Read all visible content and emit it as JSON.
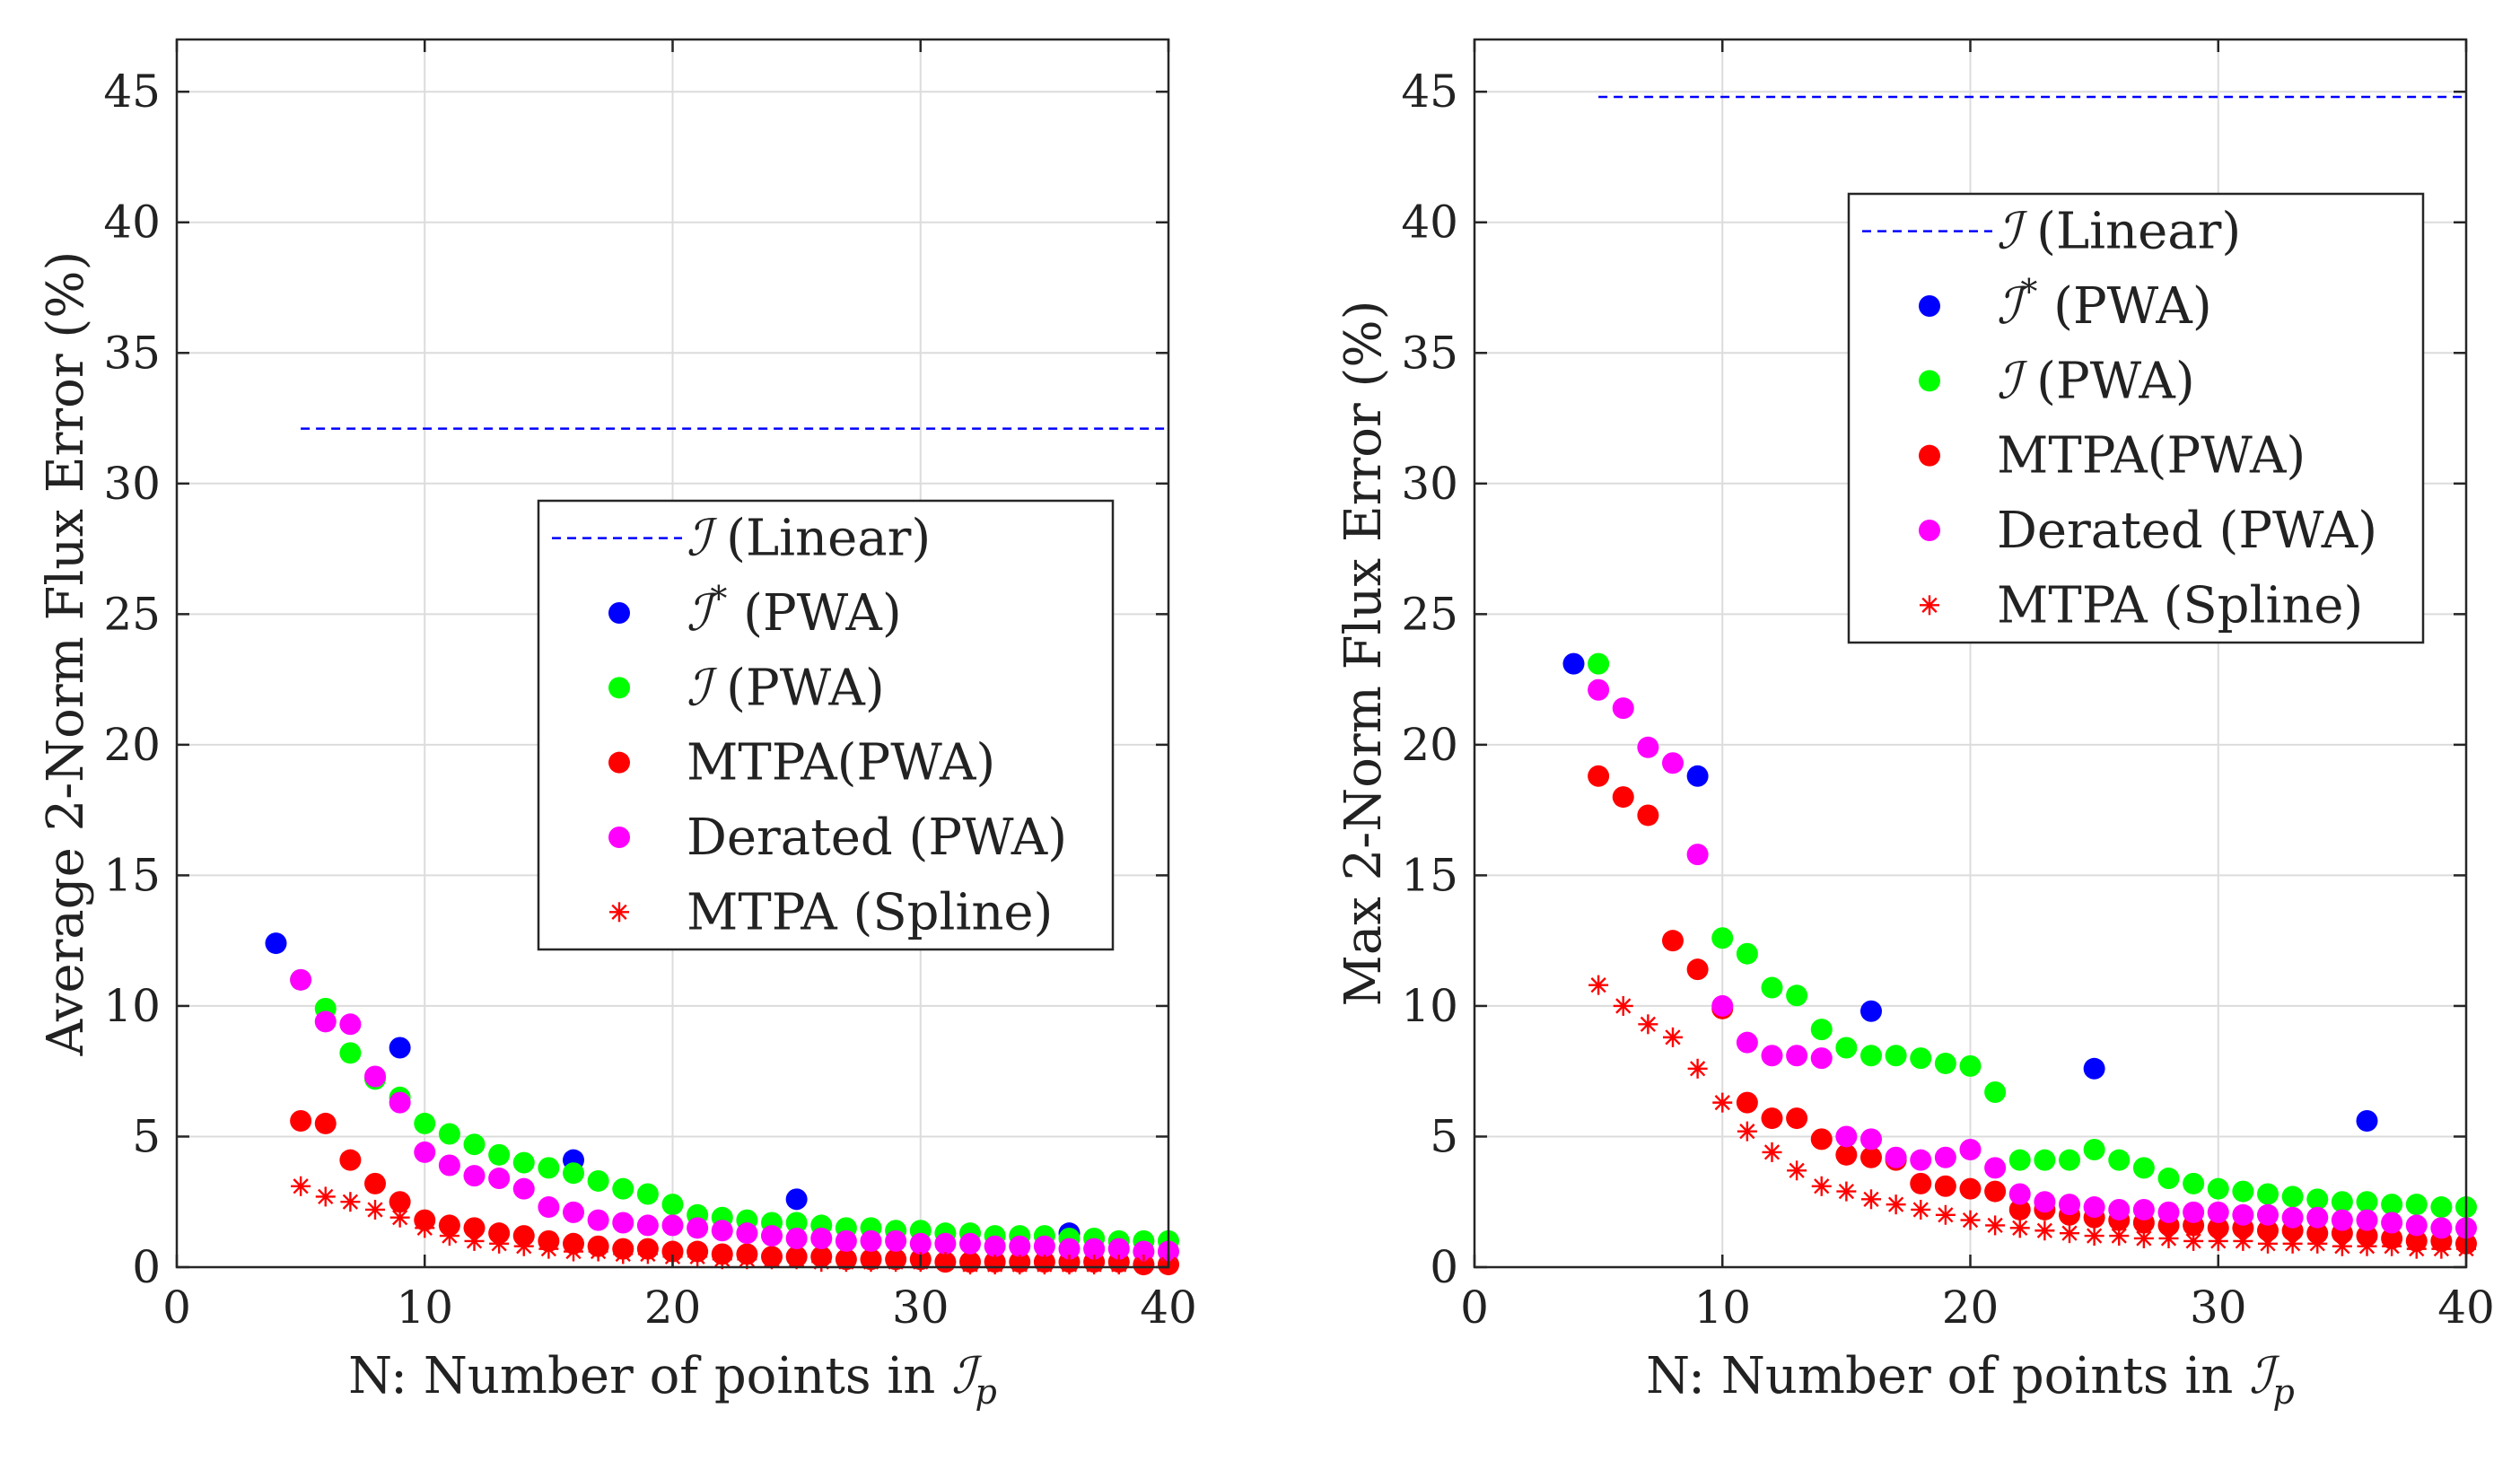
{
  "chart_data": [
    {
      "type": "scatter",
      "xlabel": "N: Number of points in ",
      "xlabel_math": "ℐ",
      "xlabel_sub": "p",
      "ylabel": "Average 2-Norm Flux Error (%)",
      "xlim": [
        0,
        40
      ],
      "ylim": [
        0,
        47
      ],
      "xticks": [
        0,
        10,
        20,
        30,
        40
      ],
      "yticks": [
        0,
        5,
        10,
        15,
        20,
        25,
        30,
        35,
        40,
        45
      ],
      "grid": true,
      "legend_position": "center-right",
      "series": [
        {
          "name": "(Linear)",
          "math": "ℐ",
          "sup": "",
          "style": "dashed-line",
          "color": "#0000ff",
          "x": [
            5,
            40
          ],
          "y": [
            32.1,
            32.1
          ]
        },
        {
          "name": "(PWA)",
          "math": "ℐ",
          "sup": "*",
          "style": "dot",
          "color": "#0000ff",
          "x": [
            4,
            9,
            16,
            25,
            36
          ],
          "y": [
            12.4,
            8.4,
            4.1,
            2.6,
            1.3
          ]
        },
        {
          "name": "(PWA)",
          "math": "ℐ",
          "sup": "",
          "style": "dot",
          "color": "#00ff00",
          "x": [
            5,
            6,
            7,
            8,
            9,
            10,
            11,
            12,
            13,
            14,
            15,
            16,
            17,
            18,
            19,
            20,
            21,
            22,
            23,
            24,
            25,
            26,
            27,
            28,
            29,
            30,
            31,
            32,
            33,
            34,
            35,
            36,
            37,
            38,
            39,
            40
          ],
          "y": [
            11.0,
            9.9,
            8.2,
            7.2,
            6.5,
            5.5,
            5.1,
            4.7,
            4.3,
            4.0,
            3.8,
            3.6,
            3.3,
            3.0,
            2.8,
            2.4,
            2.0,
            1.9,
            1.8,
            1.7,
            1.7,
            1.6,
            1.5,
            1.5,
            1.4,
            1.4,
            1.3,
            1.3,
            1.2,
            1.2,
            1.2,
            1.1,
            1.1,
            1.0,
            1.0,
            1.0
          ]
        },
        {
          "name": "MTPA(PWA)",
          "math": "",
          "sup": "",
          "style": "dot",
          "color": "#ff0000",
          "x": [
            5,
            6,
            7,
            8,
            9,
            10,
            11,
            12,
            13,
            14,
            15,
            16,
            17,
            18,
            19,
            20,
            21,
            22,
            23,
            24,
            25,
            26,
            27,
            28,
            29,
            30,
            31,
            32,
            33,
            34,
            35,
            36,
            37,
            38,
            39,
            40
          ],
          "y": [
            5.6,
            5.5,
            4.1,
            3.2,
            2.5,
            1.8,
            1.6,
            1.5,
            1.3,
            1.2,
            1.0,
            0.9,
            0.8,
            0.7,
            0.7,
            0.6,
            0.6,
            0.5,
            0.5,
            0.4,
            0.4,
            0.4,
            0.3,
            0.3,
            0.3,
            0.3,
            0.2,
            0.2,
            0.2,
            0.2,
            0.2,
            0.2,
            0.2,
            0.2,
            0.1,
            0.1
          ]
        },
        {
          "name": "Derated (PWA)",
          "math": "",
          "sup": "",
          "style": "dot",
          "color": "#ff00ff",
          "x": [
            5,
            6,
            7,
            8,
            9,
            10,
            11,
            12,
            13,
            14,
            15,
            16,
            17,
            18,
            19,
            20,
            21,
            22,
            23,
            24,
            25,
            26,
            27,
            28,
            29,
            30,
            31,
            32,
            33,
            34,
            35,
            36,
            37,
            38,
            39,
            40
          ],
          "y": [
            11.0,
            9.4,
            9.3,
            7.3,
            6.3,
            4.4,
            3.9,
            3.5,
            3.4,
            3.0,
            2.3,
            2.1,
            1.8,
            1.7,
            1.6,
            1.6,
            1.5,
            1.4,
            1.3,
            1.2,
            1.1,
            1.1,
            1.0,
            1.0,
            1.0,
            0.9,
            0.9,
            0.9,
            0.8,
            0.8,
            0.8,
            0.7,
            0.7,
            0.7,
            0.6,
            0.6
          ]
        },
        {
          "name": "MTPA (Spline)",
          "math": "",
          "sup": "",
          "style": "star",
          "color": "#ff0000",
          "x": [
            5,
            6,
            7,
            8,
            9,
            10,
            11,
            12,
            13,
            14,
            15,
            16,
            17,
            18,
            19,
            20,
            21,
            22,
            23,
            24,
            25,
            26,
            27,
            28,
            29,
            30,
            31,
            32,
            33,
            34,
            35,
            36,
            37,
            38,
            39,
            40
          ],
          "y": [
            3.1,
            2.7,
            2.5,
            2.2,
            1.9,
            1.5,
            1.2,
            1.0,
            0.9,
            0.8,
            0.7,
            0.6,
            0.6,
            0.5,
            0.5,
            0.4,
            0.4,
            0.3,
            0.3,
            0.3,
            0.3,
            0.2,
            0.2,
            0.2,
            0.2,
            0.2,
            0.2,
            0.1,
            0.1,
            0.1,
            0.1,
            0.1,
            0.1,
            0.1,
            0.1,
            0.1
          ]
        }
      ]
    },
    {
      "type": "scatter",
      "xlabel": "N: Number of points in ",
      "xlabel_math": "ℐ",
      "xlabel_sub": "p",
      "ylabel": "Max 2-Norm Flux Error (%)",
      "xlim": [
        0,
        40
      ],
      "ylim": [
        0,
        47
      ],
      "xticks": [
        0,
        10,
        20,
        30,
        40
      ],
      "yticks": [
        0,
        5,
        10,
        15,
        20,
        25,
        30,
        35,
        40,
        45
      ],
      "grid": true,
      "legend_position": "top-right",
      "series": [
        {
          "name": "(Linear)",
          "math": "ℐ",
          "sup": "",
          "style": "dashed-line",
          "color": "#0000ff",
          "x": [
            5,
            40
          ],
          "y": [
            44.8,
            44.8
          ]
        },
        {
          "name": "(PWA)",
          "math": "ℐ",
          "sup": "*",
          "style": "dot",
          "color": "#0000ff",
          "x": [
            4,
            9,
            16,
            25,
            36
          ],
          "y": [
            23.1,
            18.8,
            9.8,
            7.6,
            5.6
          ]
        },
        {
          "name": "(PWA)",
          "math": "ℐ",
          "sup": "",
          "style": "dot",
          "color": "#00ff00",
          "x": [
            5,
            10,
            11,
            12,
            13,
            14,
            15,
            16,
            17,
            18,
            19,
            20,
            21,
            22,
            23,
            24,
            25,
            26,
            27,
            28,
            29,
            30,
            31,
            32,
            33,
            34,
            35,
            36,
            37,
            38,
            39,
            40
          ],
          "y": [
            23.1,
            12.6,
            12.0,
            10.7,
            10.4,
            9.1,
            8.4,
            8.1,
            8.1,
            8.0,
            7.8,
            7.7,
            6.7,
            4.1,
            4.1,
            4.1,
            4.5,
            4.1,
            3.8,
            3.4,
            3.2,
            3.0,
            2.9,
            2.8,
            2.7,
            2.6,
            2.5,
            2.5,
            2.4,
            2.4,
            2.3,
            2.3
          ]
        },
        {
          "name": "MTPA(PWA)",
          "math": "",
          "sup": "",
          "style": "dot",
          "color": "#ff0000",
          "x": [
            5,
            6,
            7,
            8,
            9,
            10,
            11,
            12,
            13,
            14,
            15,
            16,
            17,
            18,
            19,
            20,
            21,
            22,
            23,
            24,
            25,
            26,
            27,
            28,
            29,
            30,
            31,
            32,
            33,
            34,
            35,
            36,
            37,
            38,
            39,
            40
          ],
          "y": [
            18.8,
            18.0,
            17.3,
            12.5,
            11.4,
            9.9,
            6.3,
            5.7,
            5.7,
            4.9,
            4.3,
            4.2,
            4.1,
            3.2,
            3.1,
            3.0,
            2.9,
            2.2,
            2.2,
            2.0,
            1.9,
            1.8,
            1.7,
            1.6,
            1.6,
            1.5,
            1.5,
            1.4,
            1.4,
            1.3,
            1.3,
            1.2,
            1.1,
            1.0,
            1.0,
            0.9
          ]
        },
        {
          "name": "Derated (PWA)",
          "math": "",
          "sup": "",
          "style": "dot",
          "color": "#ff00ff",
          "x": [
            5,
            6,
            7,
            8,
            9,
            10,
            11,
            12,
            13,
            14,
            15,
            16,
            17,
            18,
            19,
            20,
            21,
            22,
            23,
            24,
            25,
            26,
            27,
            28,
            29,
            30,
            31,
            32,
            33,
            34,
            35,
            36,
            37,
            38,
            39,
            40
          ],
          "y": [
            22.1,
            21.4,
            19.9,
            19.3,
            15.8,
            10.0,
            8.6,
            8.1,
            8.1,
            8.0,
            5.0,
            4.9,
            4.2,
            4.1,
            4.2,
            4.5,
            3.8,
            2.8,
            2.5,
            2.4,
            2.3,
            2.2,
            2.2,
            2.1,
            2.1,
            2.1,
            2.0,
            2.0,
            1.9,
            1.9,
            1.8,
            1.8,
            1.7,
            1.6,
            1.5,
            1.5
          ]
        },
        {
          "name": "MTPA (Spline)",
          "math": "",
          "sup": "",
          "style": "star",
          "color": "#ff0000",
          "x": [
            5,
            6,
            7,
            8,
            9,
            10,
            11,
            12,
            13,
            14,
            15,
            16,
            17,
            18,
            19,
            20,
            21,
            22,
            23,
            24,
            25,
            26,
            27,
            28,
            29,
            30,
            31,
            32,
            33,
            34,
            35,
            36,
            37,
            38,
            39,
            40
          ],
          "y": [
            10.8,
            10.0,
            9.3,
            8.8,
            7.6,
            6.3,
            5.2,
            4.4,
            3.7,
            3.1,
            2.9,
            2.6,
            2.4,
            2.2,
            2.0,
            1.8,
            1.6,
            1.5,
            1.4,
            1.3,
            1.2,
            1.2,
            1.1,
            1.1,
            1.0,
            1.0,
            1.0,
            0.9,
            0.9,
            0.9,
            0.8,
            0.8,
            0.8,
            0.7,
            0.7,
            0.7
          ]
        }
      ]
    }
  ]
}
